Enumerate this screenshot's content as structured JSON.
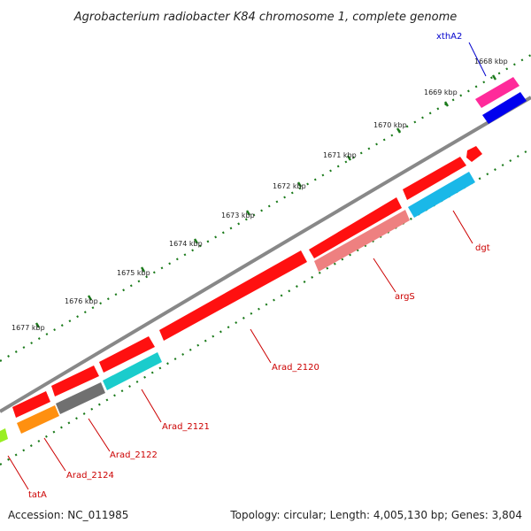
{
  "title": "Agrobacterium radiobacter K84 chromosome 1, complete genome",
  "footer": {
    "accession": "Accession: NC_011985",
    "summary": "Topology: circular; Length: 4,005,130 bp; Genes: 3,804"
  },
  "ticks": [
    "1668 kbp",
    "1669 kbp",
    "1670 kbp",
    "1671 kbp",
    "1672 kbp",
    "1673 kbp",
    "1674 kbp",
    "1675 kbp",
    "1676 kbp",
    "1677 kbp"
  ],
  "genes": [
    {
      "label": "xthA2",
      "color": "#0000cc"
    },
    {
      "label": "dgt",
      "color": "#cc0000"
    },
    {
      "label": "argS",
      "color": "#cc0000"
    },
    {
      "label": "Arad_2120",
      "color": "#cc0000"
    },
    {
      "label": "Arad_2121",
      "color": "#cc0000"
    },
    {
      "label": "Arad_2122",
      "color": "#cc0000"
    },
    {
      "label": "Arad_2124",
      "color": "#cc0000"
    },
    {
      "label": "tatA",
      "color": "#cc0000"
    }
  ],
  "colors": {
    "backbone": "#888888",
    "tick": "#1a7a1a",
    "forward_gene": "#ff1010",
    "magenta_gene": "#ff2a9a",
    "blue_gene": "#0000ee",
    "cyan_gene": "#1ab8e8",
    "salmon_gene": "#ee8080",
    "teal_gene": "#1acccc",
    "gray_gene": "#707070",
    "orange_gene": "#ff9010",
    "lime_gene": "#99ee22"
  }
}
